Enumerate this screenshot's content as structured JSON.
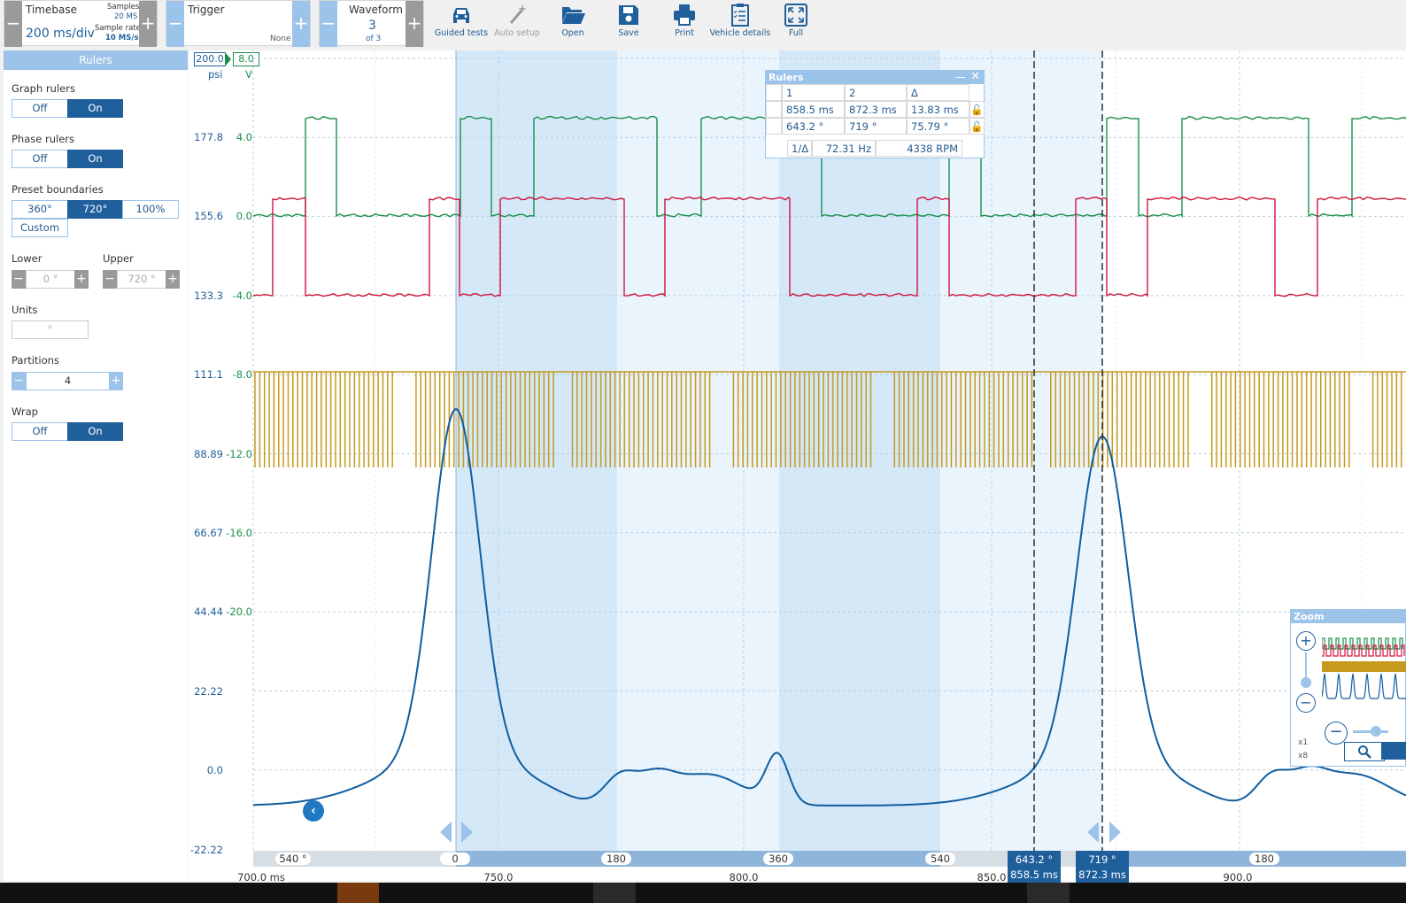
{
  "toolbar": {
    "timebase": {
      "label": "Timebase",
      "value": "200 ms/div",
      "samples_label": "Samples",
      "samples_value": "20 MS",
      "rate_label": "Sample rate",
      "rate_value": "10 MS/s"
    },
    "trigger": {
      "label": "Trigger",
      "value": "None"
    },
    "waveform": {
      "label": "Waveform",
      "value": "3",
      "of": "of 3"
    },
    "tools": [
      "Guided tests",
      "Auto setup",
      "Open",
      "Save",
      "Print",
      "Vehicle details",
      "Full"
    ],
    "minus": "−",
    "plus": "+"
  },
  "rulers_panel": {
    "title": "Rulers",
    "graph_rulers": {
      "label": "Graph rulers",
      "off": "Off",
      "on": "On"
    },
    "phase_rulers": {
      "label": "Phase rulers",
      "off": "Off",
      "on": "On"
    },
    "preset": {
      "label": "Preset boundaries",
      "opt1": "360°",
      "opt2": "720°",
      "opt3": "100%",
      "custom": "Custom"
    },
    "lower": {
      "label": "Lower",
      "value": "0 °"
    },
    "upper": {
      "label": "Upper",
      "value": "720 °"
    },
    "units": {
      "label": "Units",
      "value": "°"
    },
    "partitions": {
      "label": "Partitions",
      "value": "4"
    },
    "wrap": {
      "label": "Wrap",
      "off": "Off",
      "on": "On"
    }
  },
  "graph": {
    "scale_left": "200.0",
    "scale_right": "8.0",
    "unit_left": "psi",
    "unit_right": "V",
    "axis_psi": [
      "177.8",
      "155.6",
      "133.3",
      "111.1",
      "88.89",
      "66.67",
      "44.44",
      "22.22",
      "0.0",
      "-22.22"
    ],
    "axis_v": [
      "4.0",
      "0.0",
      "-4.0",
      "-8.0",
      "-12.0",
      "-16.0",
      "-20.0"
    ],
    "x_ticks": [
      "700.0 ms",
      "750.0",
      "800.0",
      "850.0",
      "900.0"
    ],
    "phase_ticks": [
      "540 °",
      "0",
      "180",
      "360",
      "540",
      "180"
    ],
    "ruler1_marker": {
      "deg": "643.2 °",
      "ms": "858.5 ms"
    },
    "ruler2_marker": {
      "deg": "719 °",
      "ms": "872.3 ms"
    },
    "colors": {
      "green": "#1a8f4a",
      "red": "#d0133c",
      "gold": "#c59a1e",
      "blue": "#0f5ea0",
      "band": "#d4e8f8",
      "band_light": "#eaf4fc"
    }
  },
  "rulers_table": {
    "title": "Rulers",
    "header": [
      "1",
      "2",
      "Δ"
    ],
    "rows": [
      [
        "858.5 ms",
        "872.3 ms",
        "13.83 ms"
      ],
      [
        "643.2 °",
        "719 °",
        "75.79 °"
      ]
    ],
    "freq_label": "1/Δ",
    "freq": "72.31 Hz",
    "rpm": "4338 RPM"
  },
  "zoom": {
    "title": "Zoom",
    "x1": "x1",
    "x8": "x8"
  }
}
